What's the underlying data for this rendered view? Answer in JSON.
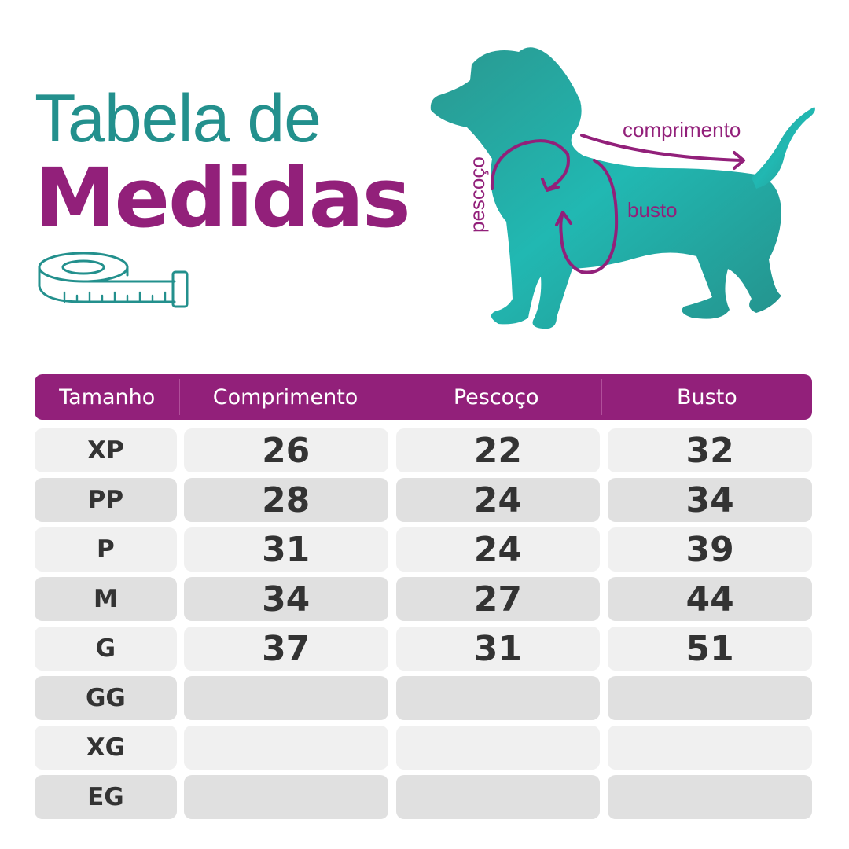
{
  "title": {
    "line1": "Tabela de",
    "line2": "Medidas"
  },
  "diagram": {
    "length_label": "comprimento",
    "neck_label": "pescoço",
    "chest_label": "busto"
  },
  "colors": {
    "teal": "#23908d",
    "purple": "#92207a"
  },
  "table": {
    "headers": [
      "Tamanho",
      "Comprimento",
      "Pescoço",
      "Busto"
    ],
    "rows": [
      {
        "size": "XP",
        "comprimento": "26",
        "pescoco": "22",
        "busto": "32"
      },
      {
        "size": "PP",
        "comprimento": "28",
        "pescoco": "24",
        "busto": "34"
      },
      {
        "size": "P",
        "comprimento": "31",
        "pescoco": "24",
        "busto": "39"
      },
      {
        "size": "M",
        "comprimento": "34",
        "pescoco": "27",
        "busto": "44"
      },
      {
        "size": "G",
        "comprimento": "37",
        "pescoco": "31",
        "busto": "51"
      },
      {
        "size": "GG",
        "comprimento": "",
        "pescoco": "",
        "busto": ""
      },
      {
        "size": "XG",
        "comprimento": "",
        "pescoco": "",
        "busto": ""
      },
      {
        "size": "EG",
        "comprimento": "",
        "pescoco": "",
        "busto": ""
      }
    ]
  }
}
